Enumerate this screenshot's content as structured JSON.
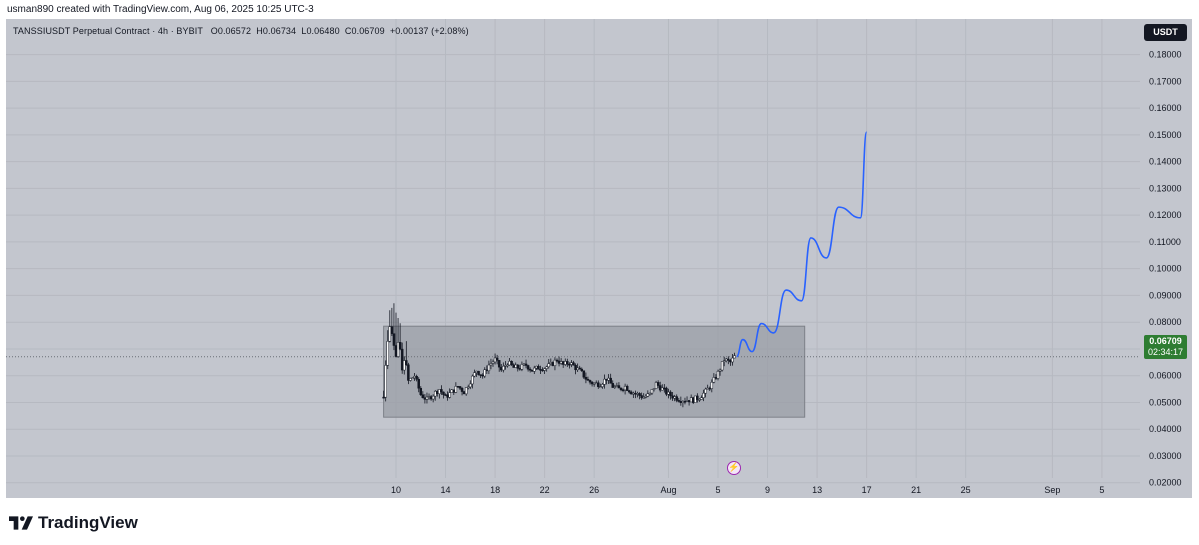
{
  "caption": "usman890 created with TradingView.com, Aug 06, 2025 10:25 UTC-3",
  "legend": {
    "symbol": "TANSSIUSDT Perpetual Contract · 4h · BYBIT",
    "open": "O0.06572",
    "high": "H0.06734",
    "low": "L0.06480",
    "close": "C0.06709",
    "change": "+0.00137 (+2.08%)"
  },
  "currency": "USDT",
  "last_price": {
    "value": "0.06709",
    "countdown": "02:34:17"
  },
  "brand": "TradingView",
  "colors": {
    "background": "#c3c6ce",
    "candle_up": "#ffffff",
    "candle_down": "#131722",
    "projection": "#2962ff",
    "range_box": "#9a9da5",
    "price_tag": "#2e7d32"
  },
  "chart_data": {
    "type": "candlestick",
    "y_axis": {
      "ticks": [
        "0.18000",
        "0.17000",
        "0.16000",
        "0.15000",
        "0.14000",
        "0.13000",
        "0.12000",
        "0.11000",
        "0.10000",
        "0.09000",
        "0.08000",
        "0.07000",
        "0.06000",
        "0.05000",
        "0.04000",
        "0.03000",
        "0.02000"
      ],
      "tick_values": [
        0.18,
        0.17,
        0.16,
        0.15,
        0.14,
        0.13,
        0.12,
        0.11,
        0.1,
        0.09,
        0.08,
        0.07,
        0.06,
        0.05,
        0.04,
        0.03,
        0.02
      ],
      "ylim": [
        0.0143,
        0.1933
      ]
    },
    "x_axis": {
      "ticks": [
        "10",
        "14",
        "18",
        "22",
        "26",
        "Aug",
        "5",
        "9",
        "13",
        "17",
        "21",
        "25",
        "Sep",
        "5"
      ],
      "tick_dates": [
        "2025-07-10",
        "2025-07-14",
        "2025-07-18",
        "2025-07-22",
        "2025-07-26",
        "2025-08-01",
        "2025-08-05",
        "2025-08-09",
        "2025-08-13",
        "2025-08-17",
        "2025-08-21",
        "2025-08-25",
        "2025-09-01",
        "2025-09-05"
      ]
    },
    "price_series": [
      [
        "2025-07-09T00:00",
        0.052
      ],
      [
        "2025-07-09T06:00",
        0.07
      ],
      [
        "2025-07-09T12:00",
        0.078
      ],
      [
        "2025-07-09T18:00",
        0.074
      ],
      [
        "2025-07-10T00:00",
        0.068
      ],
      [
        "2025-07-10T06:00",
        0.075
      ],
      [
        "2025-07-10T12:00",
        0.062
      ],
      [
        "2025-07-10T18:00",
        0.068
      ],
      [
        "2025-07-11T00:00",
        0.058
      ],
      [
        "2025-07-11T12:00",
        0.06
      ],
      [
        "2025-07-12T00:00",
        0.053
      ],
      [
        "2025-07-12T12:00",
        0.051
      ],
      [
        "2025-07-13T00:00",
        0.053
      ],
      [
        "2025-07-13T12:00",
        0.055
      ],
      [
        "2025-07-14T00:00",
        0.052
      ],
      [
        "2025-07-14T12:00",
        0.054
      ],
      [
        "2025-07-15T00:00",
        0.056
      ],
      [
        "2025-07-15T12:00",
        0.054
      ],
      [
        "2025-07-16T00:00",
        0.058
      ],
      [
        "2025-07-16T12:00",
        0.062
      ],
      [
        "2025-07-17T00:00",
        0.06
      ],
      [
        "2025-07-17T12:00",
        0.064
      ],
      [
        "2025-07-18T00:00",
        0.066
      ],
      [
        "2025-07-18T12:00",
        0.062
      ],
      [
        "2025-07-19T00:00",
        0.065
      ],
      [
        "2025-07-19T12:00",
        0.063
      ],
      [
        "2025-07-20T00:00",
        0.063
      ],
      [
        "2025-07-20T12:00",
        0.064
      ],
      [
        "2025-07-21T00:00",
        0.062
      ],
      [
        "2025-07-21T12:00",
        0.063
      ],
      [
        "2025-07-22T00:00",
        0.063
      ],
      [
        "2025-07-22T12:00",
        0.064
      ],
      [
        "2025-07-23T00:00",
        0.066
      ],
      [
        "2025-07-23T12:00",
        0.064
      ],
      [
        "2025-07-24T00:00",
        0.065
      ],
      [
        "2025-07-24T12:00",
        0.063
      ],
      [
        "2025-07-25T00:00",
        0.061
      ],
      [
        "2025-07-25T12:00",
        0.058
      ],
      [
        "2025-07-26T00:00",
        0.057
      ],
      [
        "2025-07-26T12:00",
        0.057
      ],
      [
        "2025-07-27T00:00",
        0.059
      ],
      [
        "2025-07-27T12:00",
        0.056
      ],
      [
        "2025-07-28T00:00",
        0.055
      ],
      [
        "2025-07-28T12:00",
        0.056
      ],
      [
        "2025-07-29T00:00",
        0.054
      ],
      [
        "2025-07-29T12:00",
        0.053
      ],
      [
        "2025-07-30T00:00",
        0.052
      ],
      [
        "2025-07-30T12:00",
        0.053
      ],
      [
        "2025-07-31T00:00",
        0.057
      ],
      [
        "2025-07-31T12:00",
        0.055
      ],
      [
        "2025-08-01T00:00",
        0.053
      ],
      [
        "2025-08-01T12:00",
        0.052
      ],
      [
        "2025-08-02T00:00",
        0.051
      ],
      [
        "2025-08-02T12:00",
        0.051
      ],
      [
        "2025-08-03T00:00",
        0.051
      ],
      [
        "2025-08-03T12:00",
        0.052
      ],
      [
        "2025-08-04T00:00",
        0.054
      ],
      [
        "2025-08-04T12:00",
        0.057
      ],
      [
        "2025-08-05T00:00",
        0.061
      ],
      [
        "2025-08-05T12:00",
        0.066
      ],
      [
        "2025-08-06T00:00",
        0.065
      ],
      [
        "2025-08-06T08:00",
        0.06709
      ]
    ],
    "projection": [
      [
        "2025-08-06T12:00",
        0.0671
      ],
      [
        "2025-08-07T00:00",
        0.0735
      ],
      [
        "2025-08-07T18:00",
        0.069
      ],
      [
        "2025-08-08T12:00",
        0.0795
      ],
      [
        "2025-08-09T12:00",
        0.076
      ],
      [
        "2025-08-10T12:00",
        0.092
      ],
      [
        "2025-08-11T18:00",
        0.088
      ],
      [
        "2025-08-12T12:00",
        0.1115
      ],
      [
        "2025-08-13T18:00",
        0.104
      ],
      [
        "2025-08-14T18:00",
        0.123
      ],
      [
        "2025-08-16T12:00",
        0.119
      ],
      [
        "2025-08-17T00:00",
        0.151
      ]
    ],
    "range_box": {
      "from": "2025-07-09",
      "to": "2025-08-12",
      "low": 0.0445,
      "high": 0.0785
    },
    "last_price_line": 0.06709
  }
}
